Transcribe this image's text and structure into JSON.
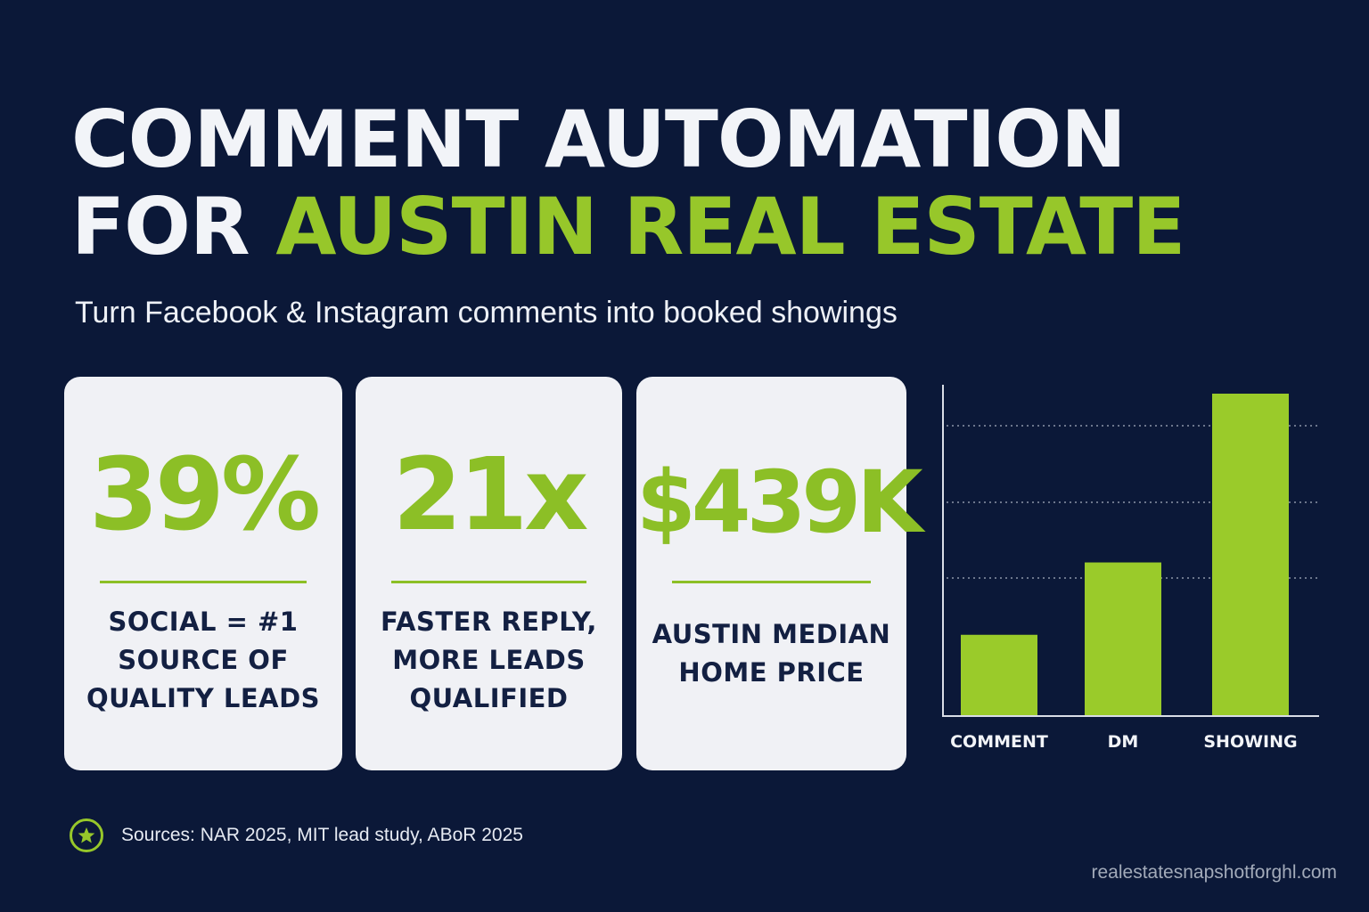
{
  "header": {
    "title_line1": "COMMENT AUTOMATION",
    "title_line2_prefix": "FOR ",
    "title_line2_accent": "AUSTIN REAL ESTATE",
    "subtitle": "Turn Facebook & Instagram comments into booked showings"
  },
  "stats": [
    {
      "value": "39%",
      "label": "SOCIAL = #1\nSOURCE OF\nQUALITY LEADS"
    },
    {
      "value": "21x",
      "label": "FASTER REPLY,\nMORE LEADS\nQUALIFIED"
    },
    {
      "value": "$439K",
      "label": "AUSTIN MEDIAN\nHOME PRICE"
    }
  ],
  "chart_data": {
    "type": "bar",
    "categories": [
      "COMMENT",
      "DM",
      "SHOWING"
    ],
    "values": [
      1,
      1.9,
      4
    ],
    "title": "",
    "xlabel": "",
    "ylabel": "",
    "grid": true,
    "color": "#9acb2a"
  },
  "footer": {
    "icon": "star-icon",
    "sources": "Sources: NAR 2025, MIT lead study, ABoR 2025",
    "site": "realestatesnapshotforghl.com"
  },
  "colors": {
    "background": "#0b1838",
    "accent": "#97c72a",
    "card": "#f0f1f5",
    "card_text": "#132042"
  }
}
